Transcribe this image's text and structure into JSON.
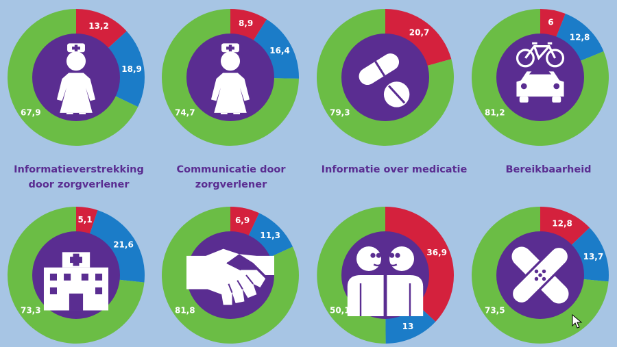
{
  "colors": {
    "red": "#d4213d",
    "blue": "#1b7cc8",
    "green": "#6bbd45",
    "purple": "#5a2d91"
  },
  "chart_data": [
    {
      "type": "pie",
      "caption": "Informatieverstrekking door zorgverlener",
      "icon": "nurse-icon",
      "series": [
        {
          "name": "red",
          "value": 13.2,
          "label": "13,2"
        },
        {
          "name": "blue",
          "value": 18.9,
          "label": "18,9"
        },
        {
          "name": "green",
          "value": 67.9,
          "label": "67,9"
        }
      ]
    },
    {
      "type": "pie",
      "caption": "Communicatie door zorgverlener",
      "icon": "nurse-icon",
      "series": [
        {
          "name": "red",
          "value": 8.9,
          "label": "8,9"
        },
        {
          "name": "blue",
          "value": 16.4,
          "label": "16,4"
        },
        {
          "name": "green",
          "value": 74.7,
          "label": "74,7"
        }
      ]
    },
    {
      "type": "pie",
      "caption": "Informatie over medicatie",
      "icon": "pills-icon",
      "series": [
        {
          "name": "red",
          "value": 20.7,
          "label": "20,7"
        },
        {
          "name": "green",
          "value": 79.3,
          "label": "79,3"
        }
      ]
    },
    {
      "type": "pie",
      "caption": "Bereikbaarheid",
      "icon": "bicycle-car-icon",
      "series": [
        {
          "name": "red",
          "value": 6,
          "label": "6"
        },
        {
          "name": "blue",
          "value": 12.8,
          "label": "12,8"
        },
        {
          "name": "green",
          "value": 81.2,
          "label": "81,2"
        }
      ]
    },
    {
      "type": "pie",
      "caption": "",
      "icon": "hospital-icon",
      "series": [
        {
          "name": "red",
          "value": 5.1,
          "label": "5,1"
        },
        {
          "name": "blue",
          "value": 21.6,
          "label": "21,6"
        },
        {
          "name": "green",
          "value": 73.3,
          "label": "73,3"
        }
      ]
    },
    {
      "type": "pie",
      "caption": "",
      "icon": "handshake-icon",
      "series": [
        {
          "name": "red",
          "value": 6.9,
          "label": "6,9"
        },
        {
          "name": "blue",
          "value": 11.3,
          "label": "11,3"
        },
        {
          "name": "green",
          "value": 81.8,
          "label": "81,8"
        }
      ]
    },
    {
      "type": "pie",
      "caption": "",
      "icon": "conversation-icon",
      "series": [
        {
          "name": "red",
          "value": 36.9,
          "label": "36,9"
        },
        {
          "name": "blue",
          "value": 13,
          "label": "13"
        },
        {
          "name": "green",
          "value": 50.1,
          "label": "50,1"
        }
      ]
    },
    {
      "type": "pie",
      "caption": "",
      "icon": "bandage-icon",
      "series": [
        {
          "name": "red",
          "value": 12.8,
          "label": "12,8"
        },
        {
          "name": "blue",
          "value": 13.7,
          "label": "13,7"
        },
        {
          "name": "green",
          "value": 73.5,
          "label": "73,5"
        }
      ]
    }
  ]
}
